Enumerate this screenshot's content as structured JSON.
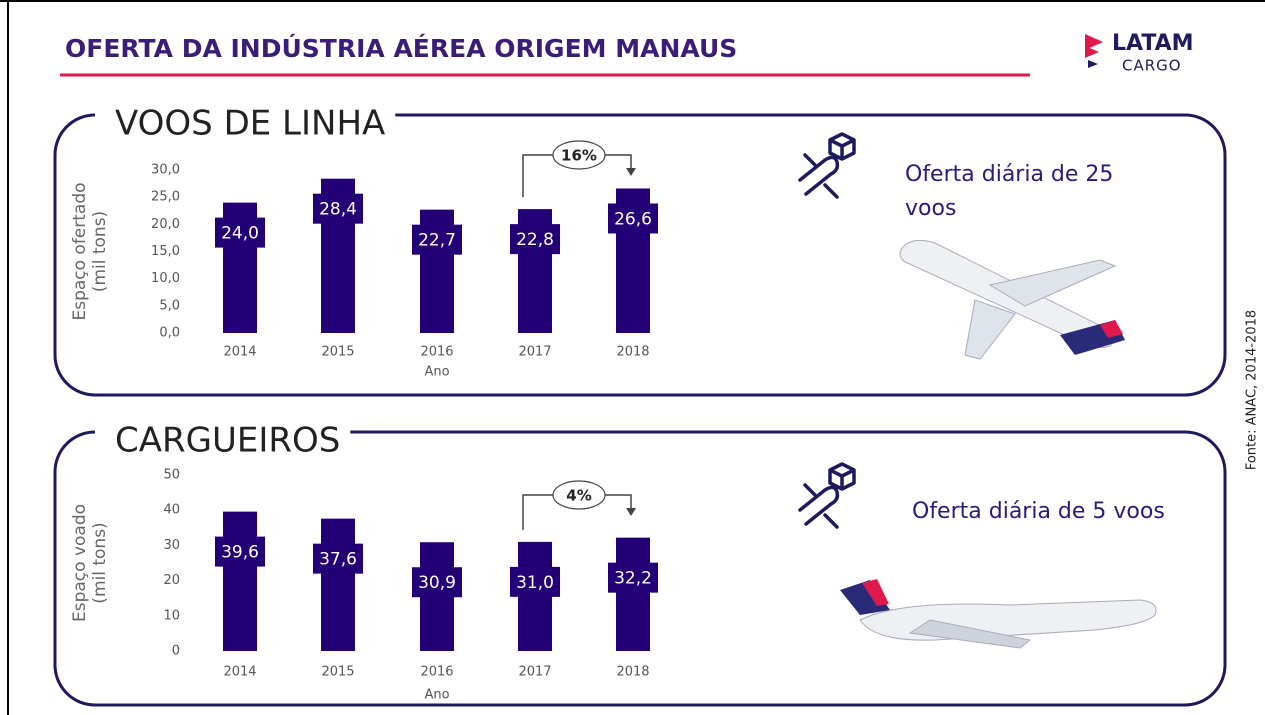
{
  "title": "OFERTA DA INDÚSTRIA AÉREA ORIGEM MANAUS",
  "logo": {
    "brand": "LATAM",
    "sub": "CARGO"
  },
  "source": "Fonte: ANAC, 2014-2018",
  "chart_data": [
    {
      "type": "bar",
      "title": "VOOS DE LINHA",
      "ylabel": [
        "Espaço ofertado",
        "(mil tons)"
      ],
      "xlabel": "Ano",
      "categories": [
        "2014",
        "2015",
        "2016",
        "2017",
        "2018"
      ],
      "values": [
        24.0,
        28.4,
        22.7,
        22.8,
        26.6
      ],
      "value_labels": [
        "24,0",
        "28,4",
        "22,7",
        "22,8",
        "26,6"
      ],
      "color": "#230076",
      "ylim": [
        0,
        30
      ],
      "yticks": [
        {
          "value": 0,
          "label": "0,0"
        },
        {
          "value": 5,
          "label": "5,0"
        },
        {
          "value": 10,
          "label": "10,0"
        },
        {
          "value": 15,
          "label": "15,0"
        },
        {
          "value": 20,
          "label": "20,0"
        },
        {
          "value": 25,
          "label": "25,0"
        },
        {
          "value": 30,
          "label": "30,0"
        }
      ],
      "annotation": "16%",
      "note": "Oferta diária de 25 voos"
    },
    {
      "type": "bar",
      "title": "CARGUEIROS",
      "ylabel": [
        "Espaço voado",
        "(mil tons)"
      ],
      "xlabel": "Ano",
      "categories": [
        "2014",
        "2015",
        "2016",
        "2017",
        "2018"
      ],
      "values": [
        39.6,
        37.6,
        30.9,
        31.0,
        32.2
      ],
      "value_labels": [
        "39,6",
        "37,6",
        "30,9",
        "31,0",
        "32,2"
      ],
      "color": "#230076",
      "ylim": [
        0,
        50
      ],
      "yticks": [
        0,
        10,
        20,
        30,
        40,
        50
      ],
      "annotation": "4%",
      "note": "Oferta diária de 5 voos"
    }
  ]
}
